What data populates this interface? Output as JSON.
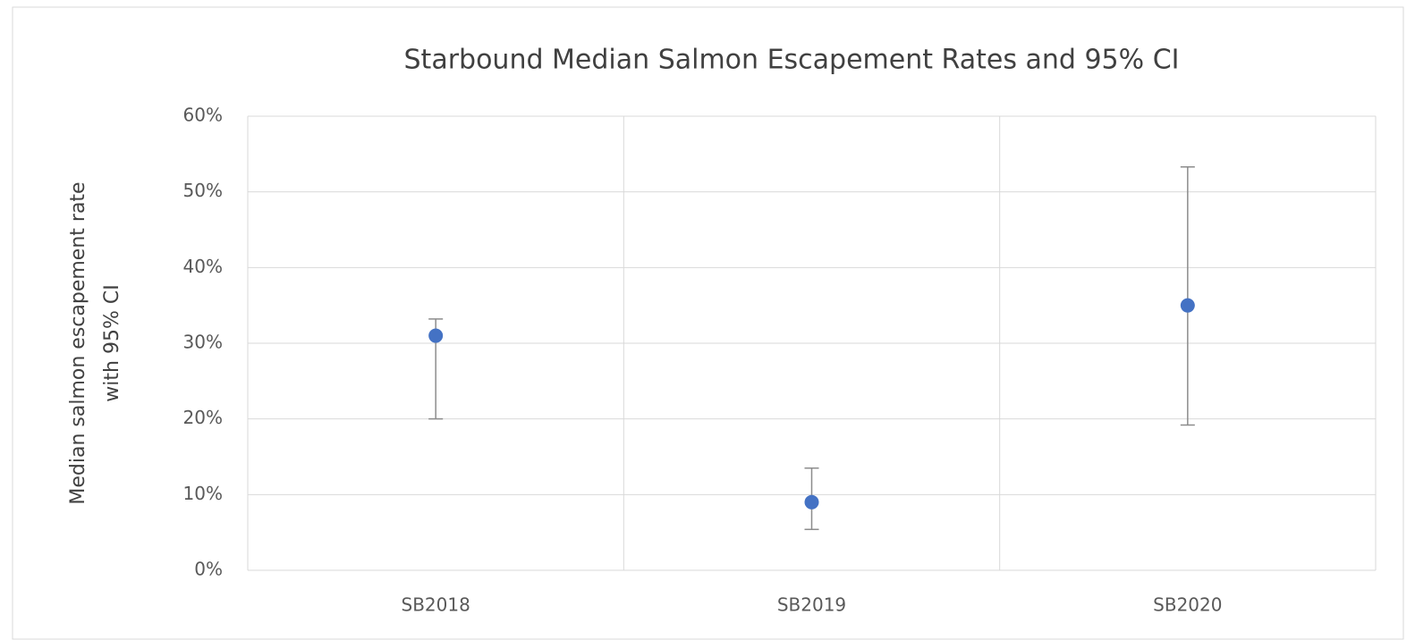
{
  "chart_data": {
    "type": "scatter",
    "title": "Starbound Median Salmon Escapement Rates and 95% CI",
    "y_label": [
      "Median salmon escapement rate",
      "with 95% CI"
    ],
    "categories": [
      "SB2018",
      "SB2019",
      "SB2020"
    ],
    "values": [
      31,
      9,
      35
    ],
    "ci_low": [
      20,
      5.4,
      19.2
    ],
    "ci_high": [
      33.2,
      13.5,
      53.3
    ],
    "color": "#4472c4",
    "error_color": "#8c8c8c",
    "ylim": [
      0,
      60
    ],
    "yticks": [
      {
        "value": 0,
        "label": "0%"
      },
      {
        "value": 10,
        "label": "10%"
      },
      {
        "value": 20,
        "label": "20%"
      },
      {
        "value": 30,
        "label": "30%"
      },
      {
        "value": 40,
        "label": "40%"
      },
      {
        "value": 50,
        "label": "50%"
      },
      {
        "value": 60,
        "label": "60%"
      }
    ],
    "grid": true
  }
}
